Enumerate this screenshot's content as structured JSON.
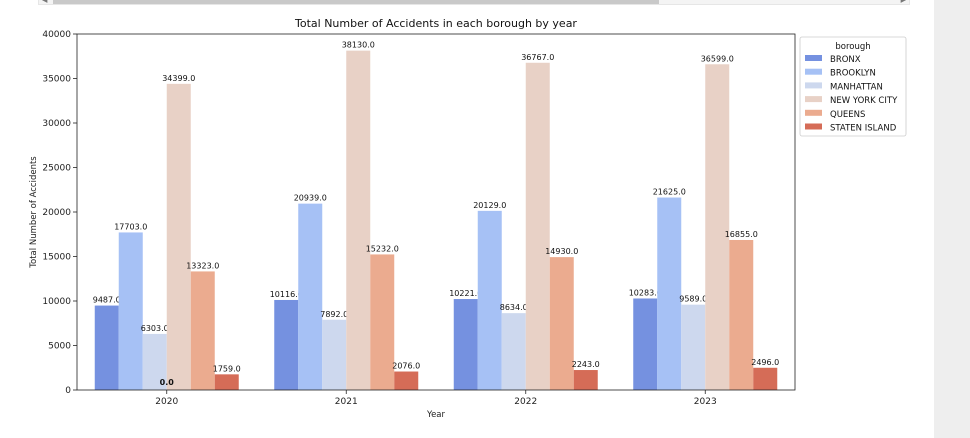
{
  "chart_data": {
    "type": "bar",
    "title": "Total Number of Accidents in each borough by year",
    "xlabel": "Year",
    "ylabel": "Total Number of Accidents",
    "categories": [
      "2020",
      "2021",
      "2022",
      "2023"
    ],
    "ylim": [
      0,
      40000
    ],
    "yticks": [
      0,
      5000,
      10000,
      15000,
      20000,
      25000,
      30000,
      35000,
      40000
    ],
    "grid": false,
    "legend": {
      "title": "borough",
      "placement": "upper-right-outside"
    },
    "series": [
      {
        "name": "BRONX",
        "color": "#7591e0",
        "values": [
          9487.0,
          10116.0,
          10221.0,
          10283.0
        ],
        "labels": [
          "9487.0",
          "10116.0",
          "10221.0",
          "10283.0"
        ]
      },
      {
        "name": "BROOKLYN",
        "color": "#a6c1f5",
        "values": [
          17703.0,
          20939.0,
          20129.0,
          21625.0
        ],
        "labels": [
          "17703.0",
          "20939.0",
          "20129.0",
          "21625.0"
        ]
      },
      {
        "name": "MANHATTAN",
        "color": "#cdd8ee",
        "values": [
          6303.0,
          7892.0,
          8634.0,
          9589.0
        ],
        "labels": [
          "6303.0",
          "7892.0",
          "8634.0",
          "9589.0"
        ]
      },
      {
        "name": "NEW YORK CITY",
        "color": "#e8d1c6",
        "values": [
          34399.0,
          38130.0,
          36767.0,
          36599.0
        ],
        "labels": [
          "34399.0",
          "38130.0",
          "36767.0",
          "36599.0"
        ]
      },
      {
        "name": "QUEENS",
        "color": "#ebab8f",
        "values": [
          13323.0,
          15232.0,
          14930.0,
          16855.0
        ],
        "labels": [
          "13323.0",
          "15232.0",
          "14930.0",
          "16855.0"
        ]
      },
      {
        "name": "STATEN ISLAND",
        "color": "#d56c57",
        "values": [
          1759.0,
          2076.0,
          2243.0,
          2496.0
        ],
        "labels": [
          "1759.0",
          "2076.0",
          "2243.0",
          "2496.0"
        ]
      }
    ],
    "annotations": [
      {
        "text": "0.0",
        "category": "2020"
      }
    ]
  }
}
